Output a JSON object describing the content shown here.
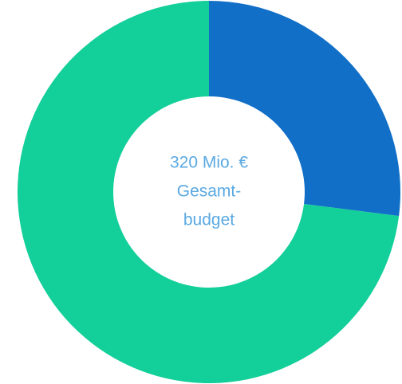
{
  "chart_data": {
    "type": "donut",
    "values": [
      27,
      73
    ],
    "colors": [
      "#116fc7",
      "#13cf99"
    ],
    "center_text": [
      "320 Mio. €",
      "Gesamt-",
      "budget"
    ]
  }
}
